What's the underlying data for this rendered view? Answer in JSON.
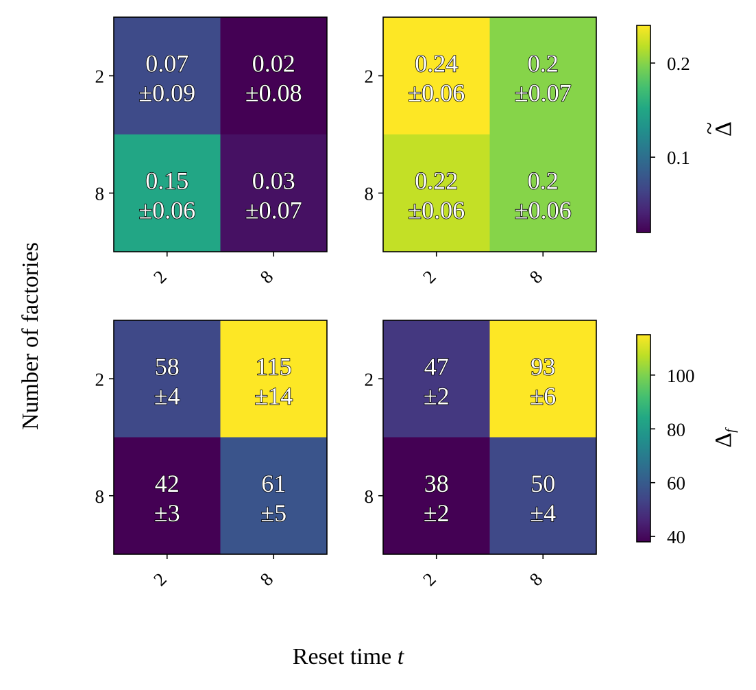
{
  "figure": {
    "xlabel": "Reset time",
    "xlabel_var": "t",
    "ylabel": "Number of factories"
  },
  "colorbars": [
    {
      "label": "Δ",
      "label_accent": "~",
      "ticks": [
        "0.1",
        "0.2"
      ],
      "tick_values": [
        0.1,
        0.2
      ],
      "vmin": 0.02,
      "vmax": 0.24
    },
    {
      "label": "Δ",
      "label_sub": "f",
      "ticks": [
        "40",
        "60",
        "80",
        "100"
      ],
      "tick_values": [
        40,
        60,
        80,
        100
      ],
      "vmin": 38,
      "vmax": 115
    }
  ],
  "chart_data": [
    {
      "type": "heatmap",
      "title": "",
      "x_categories": [
        "2",
        "8"
      ],
      "y_categories": [
        "2",
        "8"
      ],
      "values": [
        [
          0.07,
          0.02
        ],
        [
          0.15,
          0.03
        ]
      ],
      "labels": [
        [
          "0.07",
          "0.02"
        ],
        [
          "0.15",
          "0.03"
        ]
      ],
      "errors": [
        [
          "±0.09",
          "±0.08"
        ],
        [
          "±0.06",
          "±0.07"
        ]
      ],
      "colorscale": "viridis",
      "vmin": 0.02,
      "vmax": 0.24
    },
    {
      "type": "heatmap",
      "title": "",
      "x_categories": [
        "2",
        "8"
      ],
      "y_categories": [
        "2",
        "8"
      ],
      "values": [
        [
          0.24,
          0.2
        ],
        [
          0.22,
          0.2
        ]
      ],
      "labels": [
        [
          "0.24",
          "0.2"
        ],
        [
          "0.22",
          "0.2"
        ]
      ],
      "errors": [
        [
          "±0.06",
          "±0.07"
        ],
        [
          "±0.06",
          "±0.06"
        ]
      ],
      "colorscale": "viridis",
      "vmin": 0.02,
      "vmax": 0.24
    },
    {
      "type": "heatmap",
      "title": "",
      "x_categories": [
        "2",
        "8"
      ],
      "y_categories": [
        "2",
        "8"
      ],
      "values": [
        [
          58,
          115
        ],
        [
          42,
          61
        ]
      ],
      "labels": [
        [
          "58",
          "115"
        ],
        [
          "42",
          "61"
        ]
      ],
      "errors": [
        [
          "±4",
          "±14"
        ],
        [
          "±3",
          "±5"
        ]
      ],
      "colorscale": "viridis",
      "vmin": 42,
      "vmax": 115
    },
    {
      "type": "heatmap",
      "title": "",
      "x_categories": [
        "2",
        "8"
      ],
      "y_categories": [
        "2",
        "8"
      ],
      "values": [
        [
          47,
          93
        ],
        [
          38,
          50
        ]
      ],
      "labels": [
        [
          "47",
          "93"
        ],
        [
          "38",
          "50"
        ]
      ],
      "errors": [
        [
          "±2",
          "±6"
        ],
        [
          "±2",
          "±4"
        ]
      ],
      "colorscale": "viridis",
      "vmin": 38,
      "vmax": 93
    }
  ]
}
